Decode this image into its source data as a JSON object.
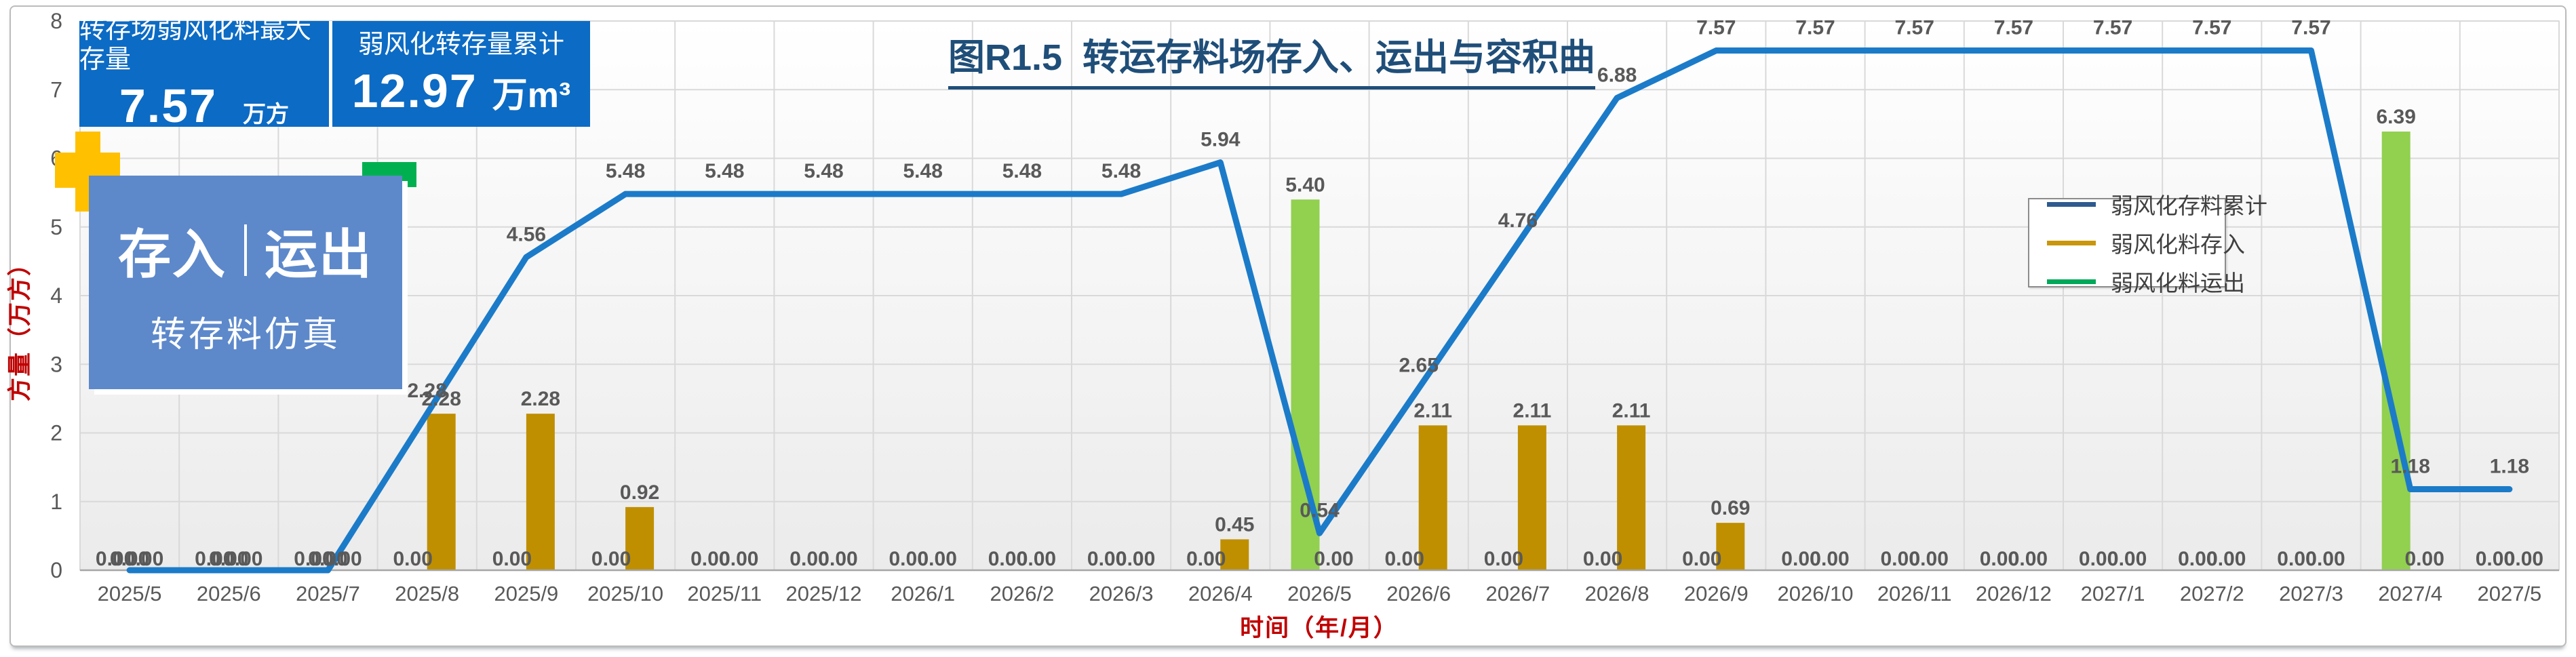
{
  "title": "图R1.5  转运存料场存入、运出与容积曲",
  "stat_boxes": [
    {
      "title": "转存场弱风化料最大存量",
      "value": "7.57",
      "unit": "万方"
    },
    {
      "title": "弱风化转存量累计",
      "value": "12.97",
      "unit": "万m³"
    }
  ],
  "overlay_label": {
    "primary_left": "存入",
    "primary_right": "运出",
    "secondary": "转存料仿真"
  },
  "legend": {
    "items": [
      {
        "label": "弱风化存料累计",
        "color": "#2e5a8f"
      },
      {
        "label": "弱风化料存入",
        "color": "#c9960c"
      },
      {
        "label": "弱风化料运出",
        "color": "#00a859"
      }
    ]
  },
  "axes": {
    "y_label": "方量（万方）",
    "x_label": "时间（年/月）",
    "y_ticks": [
      0,
      1,
      2,
      3,
      4,
      5,
      6,
      7,
      8
    ]
  },
  "colors": {
    "accent_blue_box": "#0c6bc4",
    "overlay_blue": "#5d89cb",
    "plus_gold": "#ffc000",
    "deco_green": "#00b050",
    "line_blue": "#1b7bc9",
    "bar_gold": "#bf8f00",
    "bar_green": "#92d050",
    "label_gray": "#595959",
    "axis_red": "#c00000",
    "title_navy": "#1f4e79"
  },
  "chart_data": {
    "type": "combo",
    "categories": [
      "2025/5",
      "2025/6",
      "2025/7",
      "2025/8",
      "2025/9",
      "2025/10",
      "2025/11",
      "2025/12",
      "2026/1",
      "2026/2",
      "2026/3",
      "2026/4",
      "2026/5",
      "2026/6",
      "2026/7",
      "2026/8",
      "2026/9",
      "2026/10",
      "2026/11",
      "2026/12",
      "2027/1",
      "2027/2",
      "2027/3",
      "2027/4",
      "2027/5"
    ],
    "ylim": [
      0,
      8
    ],
    "xlabel": "时间（年/月）",
    "ylabel": "方量（万方）",
    "grid": true,
    "legend_position": "right-middle",
    "series": [
      {
        "name": "弱风化存料累计",
        "type": "line",
        "color": "#1b7bc9",
        "values": [
          0.0,
          0.0,
          0.0,
          2.28,
          4.56,
          5.48,
          5.48,
          5.48,
          5.48,
          5.48,
          5.48,
          5.94,
          0.54,
          2.65,
          4.76,
          6.88,
          7.57,
          7.57,
          7.57,
          7.57,
          7.57,
          7.57,
          7.57,
          1.18,
          1.18
        ]
      },
      {
        "name": "弱风化料存入",
        "type": "bar",
        "slot": "right",
        "color": "#bf8f00",
        "values": [
          0.0,
          0.0,
          0.0,
          2.28,
          2.28,
          0.92,
          0.0,
          0.0,
          0.0,
          0.0,
          0.0,
          0.45,
          0.0,
          2.11,
          2.11,
          2.11,
          0.69,
          0.0,
          0.0,
          0.0,
          0.0,
          0.0,
          0.0,
          0.0,
          0.0
        ]
      },
      {
        "name": "弱风化料运出",
        "type": "bar",
        "slot": "left",
        "color": "#92d050",
        "values": [
          0.0,
          0.0,
          0.0,
          0.0,
          0.0,
          0.0,
          0.0,
          0.0,
          0.0,
          0.0,
          0.0,
          0.0,
          5.4,
          0.0,
          0.0,
          0.0,
          0.0,
          0.0,
          0.0,
          0.0,
          0.0,
          0.0,
          0.0,
          6.39,
          0.0
        ]
      }
    ]
  }
}
